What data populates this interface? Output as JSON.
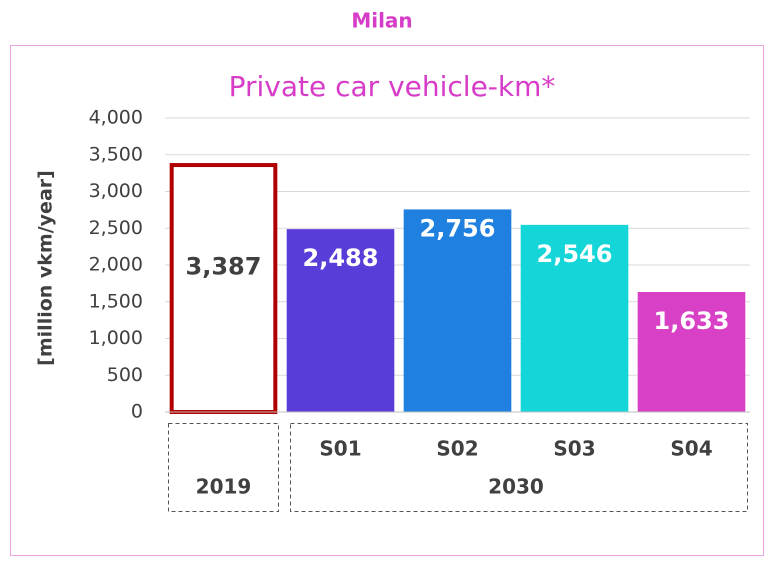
{
  "chart_data": {
    "type": "bar",
    "header": "Milan",
    "title": "Private car vehicle-km*",
    "ylabel": "[million vkm/year]",
    "categories": [
      "2019",
      "S01",
      "S02",
      "S03",
      "S04"
    ],
    "group_label": "2030",
    "values": [
      3387,
      2488,
      2756,
      2546,
      1633
    ],
    "value_labels": [
      "3,387",
      "2,488",
      "2,756",
      "2,546",
      "1,633"
    ],
    "colors": [
      "#ffffff",
      "#5a3dd8",
      "#1f80e0",
      "#14d6d8",
      "#d840c6"
    ],
    "edge_colors": [
      "#b00000",
      null,
      null,
      null,
      null
    ],
    "label_colors": [
      "#404040",
      "#ffffff",
      "#ffffff",
      "#ffffff",
      "#ffffff"
    ],
    "ylim": [
      0,
      4000
    ],
    "yticks": [
      0,
      500,
      {
        "value": 1000,
        "label": "1,000"
      },
      {
        "value": 1500,
        "label": "1,500"
      },
      {
        "value": 2000,
        "label": "2,000"
      },
      {
        "value": 2500,
        "label": "2,500"
      },
      {
        "value": 3000,
        "label": "3,000"
      },
      {
        "value": 3500,
        "label": "3,500"
      },
      {
        "value": 4000,
        "label": "4,000"
      }
    ],
    "grid": true
  }
}
